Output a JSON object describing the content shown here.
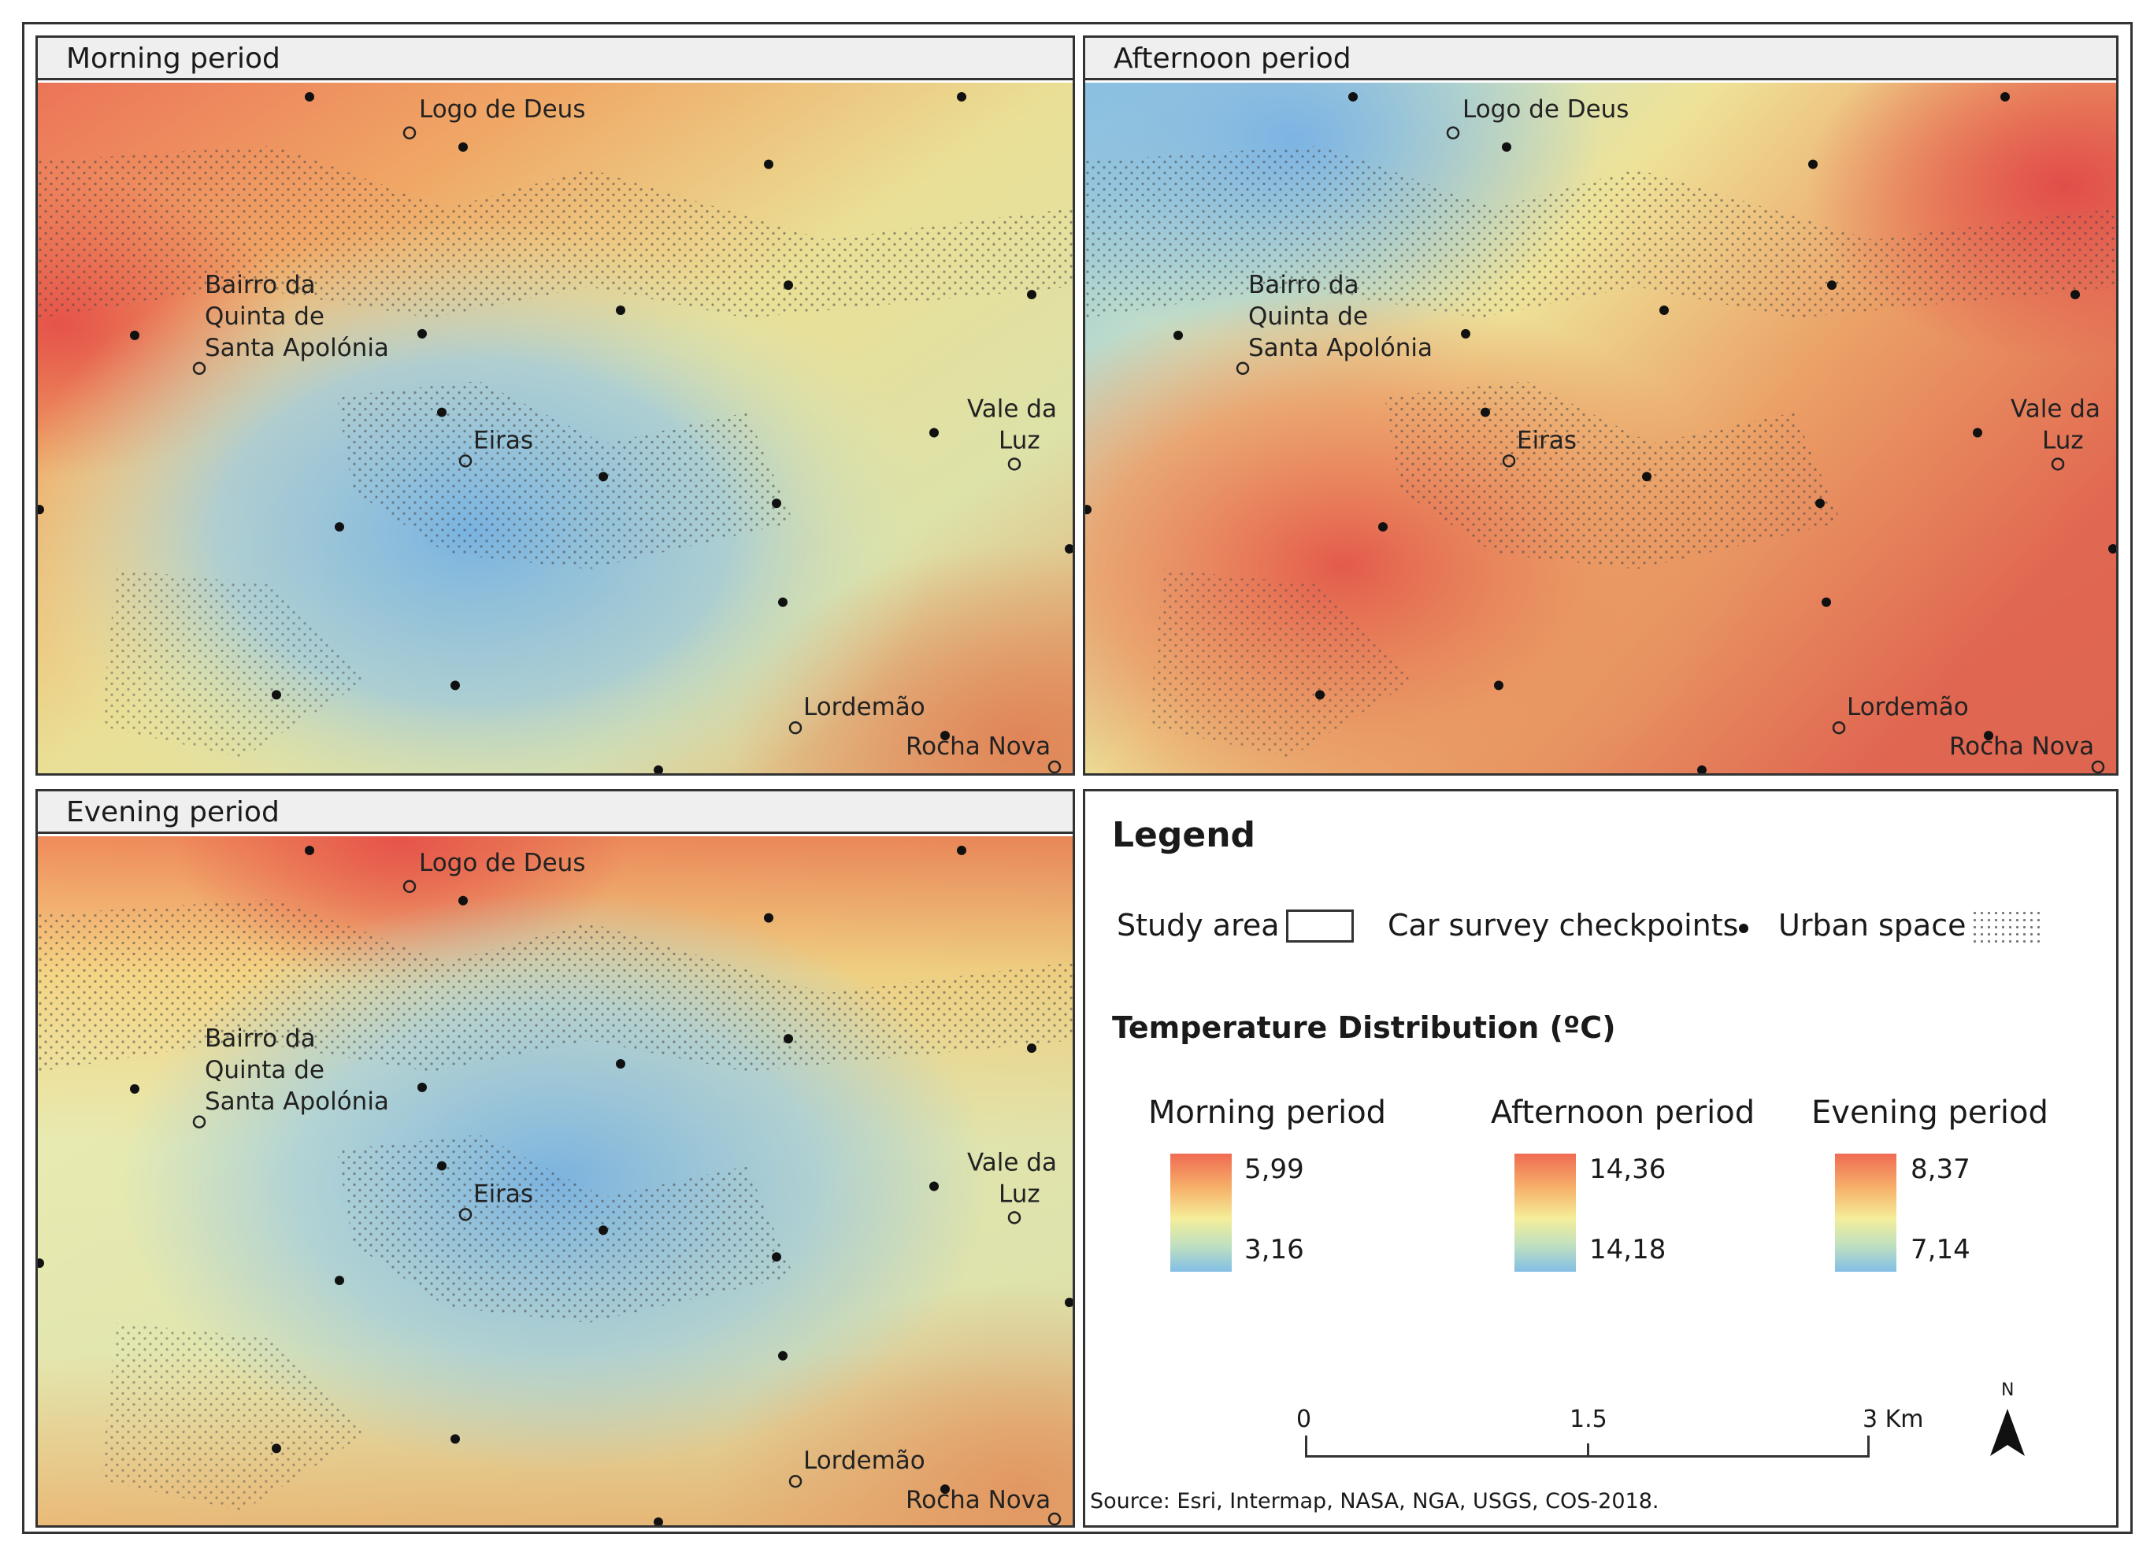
{
  "panels": {
    "morning": {
      "title": "Morning period"
    },
    "afternoon": {
      "title": "Afternoon period"
    },
    "evening": {
      "title": "Evening period"
    }
  },
  "places": {
    "logo_de_deus": "Logo de Deus",
    "bairro_1": "Bairro da",
    "bairro_2": "Quinta de",
    "bairro_3": "Santa Apolónia",
    "eiras": "Eiras",
    "vale_1": "Vale da",
    "vale_2": "Luz",
    "lordemao": "Lordemão",
    "rocha_nova": "Rocha Nova"
  },
  "legend": {
    "title": "Legend",
    "study_area": "Study area",
    "checkpoints": "Car survey checkpoints",
    "urban": "Urban space",
    "temp_title": "Temperature Distribution (ºC)",
    "morning": {
      "label": "Morning period",
      "max": "5,99",
      "min": "3,16"
    },
    "afternoon": {
      "label": "Afternoon period",
      "max": "14,36",
      "min": "14,18"
    },
    "evening": {
      "label": "Evening period",
      "max": "8,37",
      "min": "7,14"
    },
    "ramp_colors": [
      "#ef6b52",
      "#f6b36b",
      "#f4ee9a",
      "#bfe0c0",
      "#82bfe6"
    ]
  },
  "scalebar": {
    "t0": "0",
    "t1": "1.5",
    "t2": "3 Km",
    "north": "N"
  },
  "source": "Source: Esri, Intermap, NASA, NGA, USGS, COS-2018."
}
